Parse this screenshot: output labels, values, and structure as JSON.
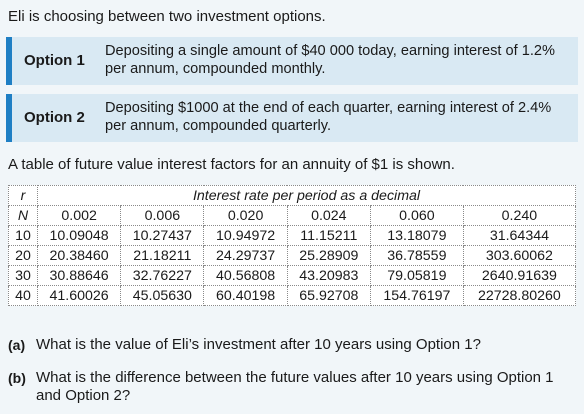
{
  "intro": "Eli is choosing between two investment options.",
  "options": [
    {
      "name": "Option 1",
      "description": "Depositing a single amount of $40 000 today, earning interest of 1.2% per annum, compounded monthly."
    },
    {
      "name": "Option 2",
      "description": "Depositing $1000 at the end of each quarter, earning interest of 2.4% per annum, compounded quarterly."
    }
  ],
  "colors": {
    "accent_bar": "#1f7fc4",
    "option_bg": "#d9e9f3",
    "page_bg": "#f1f6f9"
  },
  "table_intro": "A table of future value interest factors for an annuity of $1 is shown.",
  "table": {
    "r_label": "r",
    "n_label": "N",
    "header": "Interest rate per period as a decimal",
    "rates": [
      "0.002",
      "0.006",
      "0.020",
      "0.024",
      "0.060",
      "0.240"
    ],
    "rows": [
      {
        "n": "10",
        "values": [
          "10.09048",
          "10.27437",
          "10.94972",
          "11.15211",
          "13.18079",
          "31.64344"
        ]
      },
      {
        "n": "20",
        "values": [
          "20.38460",
          "21.18211",
          "24.29737",
          "25.28909",
          "36.78559",
          "303.60062"
        ]
      },
      {
        "n": "30",
        "values": [
          "30.88646",
          "32.76227",
          "40.56808",
          "43.20983",
          "79.05819",
          "2640.91639"
        ]
      },
      {
        "n": "40",
        "values": [
          "41.60026",
          "45.05630",
          "60.40198",
          "65.92708",
          "154.76197",
          "22728.80260"
        ]
      }
    ]
  },
  "questions": [
    {
      "label": "(a)",
      "text": "What is the value of Eli’s investment after 10 years using Option 1?"
    },
    {
      "label": "(b)",
      "text": "What is the difference between the future values after 10 years using Option 1 and Option 2?"
    }
  ]
}
